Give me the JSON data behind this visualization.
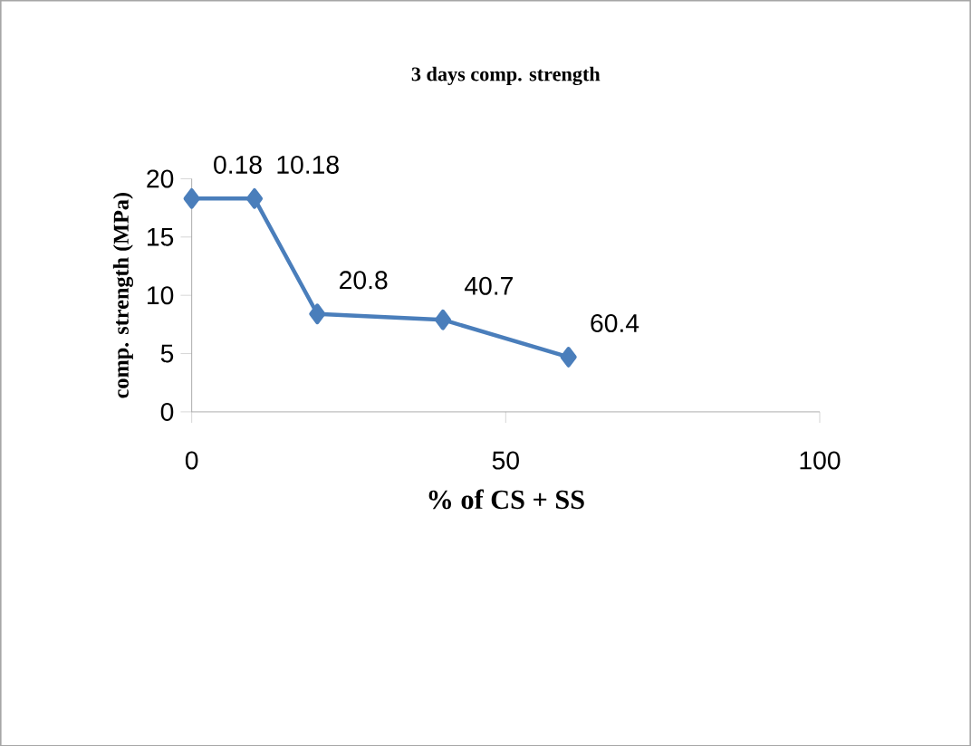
{
  "chart_data": {
    "type": "line",
    "title": "3 days comp. strength",
    "xlabel": "% of CS + SS",
    "ylabel": "comp. strength (MPa)",
    "x": [
      0,
      10,
      20,
      40,
      60
    ],
    "series": [
      {
        "color": "#4a7ebb",
        "values": [
          18.3,
          18.3,
          8.4,
          7.9,
          4.7
        ]
      }
    ],
    "annotations": [
      {
        "text": "0.18",
        "x": 0,
        "y": 18.3
      },
      {
        "text": "10.18",
        "x": 10,
        "y": 18.3
      },
      {
        "text": "20.8",
        "x": 20,
        "y": 8.4
      },
      {
        "text": "40.7",
        "x": 40,
        "y": 7.9
      },
      {
        "text": "60.4",
        "x": 60,
        "y": 4.7
      }
    ],
    "xlim": [
      0,
      100
    ],
    "xticks": [
      0,
      50,
      100
    ],
    "ylim": [
      0,
      20
    ],
    "yticks": [
      0,
      5,
      10,
      15,
      20
    ],
    "marker": "diamond",
    "line_style": "solid"
  }
}
